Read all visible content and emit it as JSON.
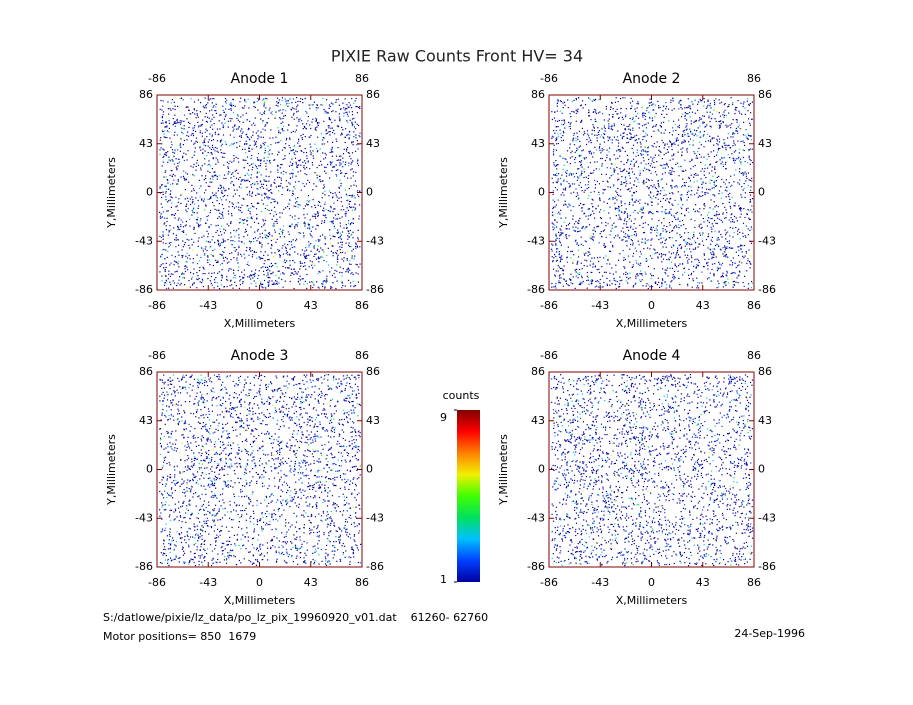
{
  "title": "PIXIE Raw Counts Front HV= 34",
  "chart_data": [
    {
      "type": "image",
      "title": "Anode 1",
      "x_label": "X,Millimeters",
      "y_label": "Y,Millimeters",
      "xlim": [
        -86,
        86
      ],
      "ylim": [
        -86,
        86
      ],
      "xticks": [
        -86,
        -43,
        0,
        43,
        86
      ],
      "yticks": [
        -86,
        -43,
        0,
        43,
        86
      ],
      "axis_color": "#800000"
    },
    {
      "type": "image",
      "title": "Anode 2",
      "x_label": "X,Millimeters",
      "y_label": "Y,Millimeters",
      "xlim": [
        -86,
        86
      ],
      "ylim": [
        -86,
        86
      ],
      "xticks": [
        -86,
        -43,
        0,
        43,
        86
      ],
      "yticks": [
        -86,
        -43,
        0,
        43,
        86
      ],
      "axis_color": "#800000"
    },
    {
      "type": "image",
      "title": "Anode 3",
      "x_label": "X,Millimeters",
      "y_label": "Y,Millimeters",
      "xlim": [
        -86,
        86
      ],
      "ylim": [
        -86,
        86
      ],
      "xticks": [
        -86,
        -43,
        0,
        43,
        86
      ],
      "yticks": [
        -86,
        -43,
        0,
        43,
        86
      ],
      "axis_color": "#800000"
    },
    {
      "type": "image",
      "title": "Anode 4",
      "x_label": "X,Millimeters",
      "y_label": "Y,Millimeters",
      "xlim": [
        -86,
        86
      ],
      "ylim": [
        -86,
        86
      ],
      "xticks": [
        -86,
        -43,
        0,
        43,
        86
      ],
      "yticks": [
        -86,
        -43,
        0,
        43,
        86
      ],
      "axis_color": "#800000"
    }
  ],
  "colorbar": {
    "label": "counts",
    "lim": [
      1,
      9
    ],
    "ticks": [
      1,
      9
    ],
    "colors": [
      "#0000a0",
      "#0040ff",
      "#00c0ff",
      "#00e060",
      "#40ff00",
      "#f0f000",
      "#ff8000",
      "#ff0000",
      "#800000"
    ]
  },
  "footer": {
    "file": "S:/datlowe/pixie/lz_data/po_lz_pix_19960920_v01.dat    61260- 62760",
    "motor": "Motor positions= 850  1679",
    "date": "24-Sep-1996"
  }
}
